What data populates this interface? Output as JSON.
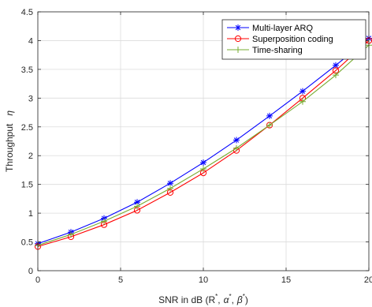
{
  "chart_data": {
    "type": "line",
    "title": "",
    "xlabel": "SNR in dB (R",
    "xlabel_sup": "*",
    "xlabel_alpha": "α",
    "xlabel_beta": "β",
    "xlabel_close": ")",
    "xlabel_comma": ",",
    "ylabel": "Throughput",
    "ylabel_symbol": "η",
    "xlim": [
      0,
      20
    ],
    "ylim": [
      0,
      4.5
    ],
    "xticks": [
      0,
      5,
      10,
      15,
      20
    ],
    "yticks": [
      0,
      0.5,
      1,
      1.5,
      2,
      2.5,
      3,
      3.5,
      4,
      4.5
    ],
    "grid": true,
    "legend_position": "top-right",
    "x": [
      0,
      2,
      4,
      6,
      8,
      10,
      12,
      14,
      16,
      18,
      20
    ],
    "series": [
      {
        "name": "Multi-layer ARQ",
        "color": "#0000ff",
        "marker": "asterisk",
        "values": [
          0.47,
          0.67,
          0.91,
          1.19,
          1.52,
          1.88,
          2.27,
          2.69,
          3.12,
          3.57,
          4.04
        ]
      },
      {
        "name": "Superposition coding",
        "color": "#ff0000",
        "marker": "circle",
        "values": [
          0.42,
          0.59,
          0.8,
          1.05,
          1.36,
          1.7,
          2.09,
          2.53,
          3.0,
          3.48,
          4.0
        ]
      },
      {
        "name": "Time-sharing",
        "color": "#77ac30",
        "marker": "plus",
        "values": [
          0.44,
          0.63,
          0.86,
          1.12,
          1.43,
          1.77,
          2.13,
          2.53,
          2.94,
          3.4,
          3.92
        ]
      }
    ]
  }
}
